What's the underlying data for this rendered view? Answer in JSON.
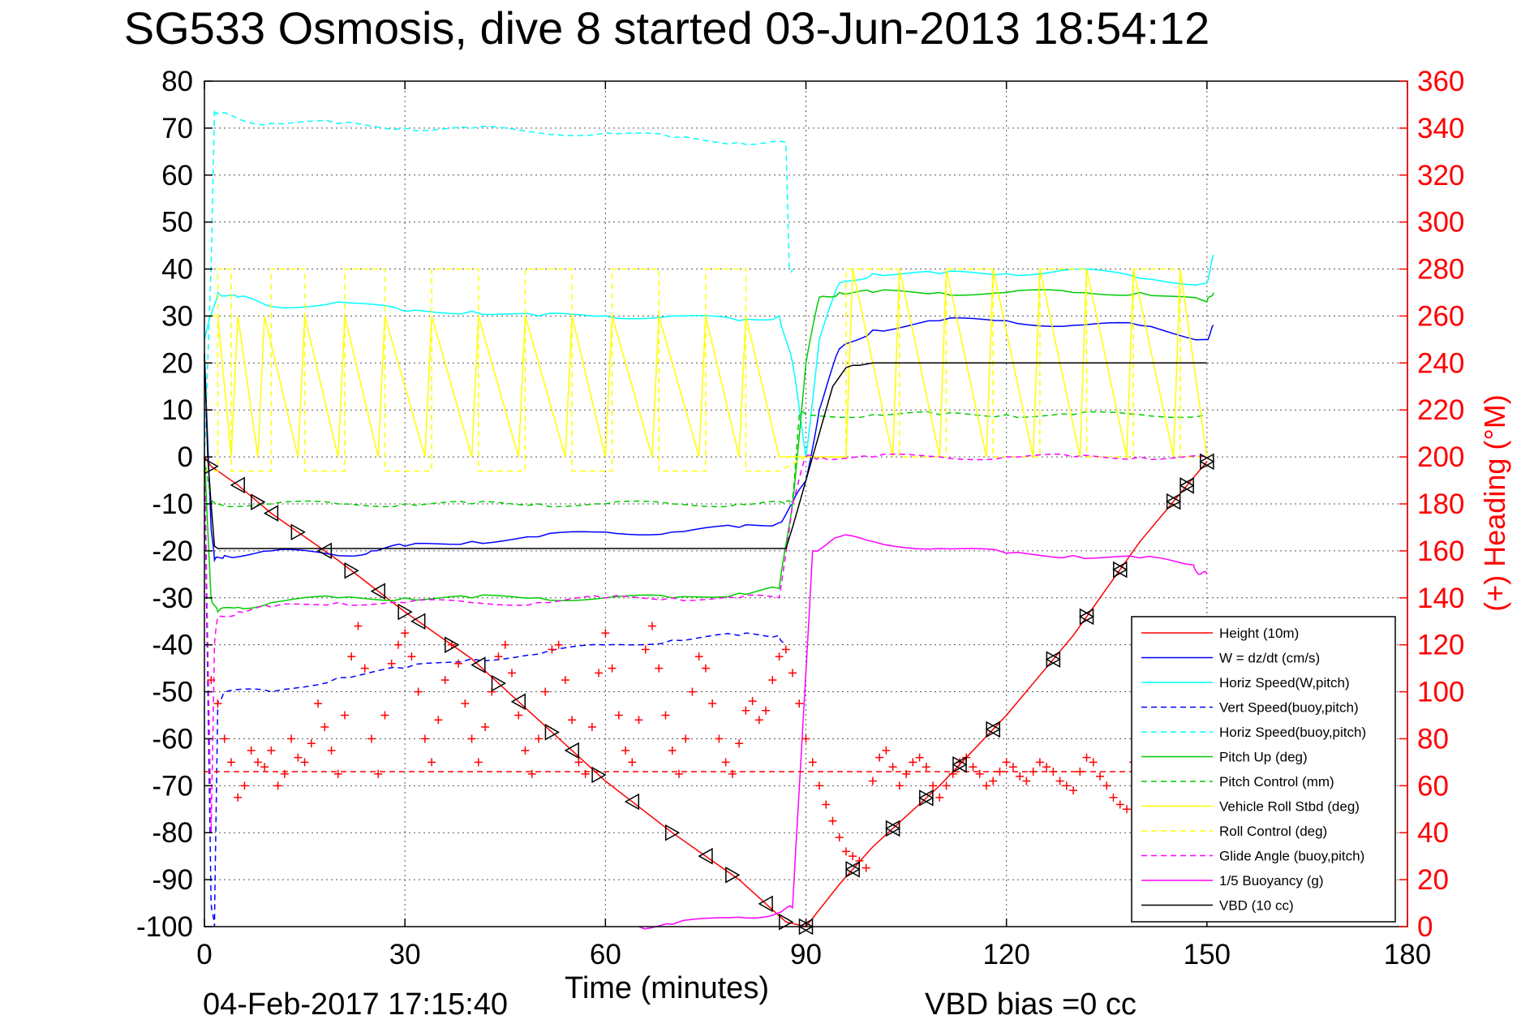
{
  "chart_data": {
    "type": "line",
    "title": "SG533 Osmosis, dive 8 started 03-Jun-2013 18:54:12",
    "xlabel": "Time (minutes)",
    "ylabel": "",
    "y2label": "(+) Heading (°M)",
    "xlim": [
      0,
      180
    ],
    "ylim": [
      -100,
      80
    ],
    "y2lim": [
      0,
      360
    ],
    "xticks": [
      "0",
      "30",
      "60",
      "90",
      "120",
      "150",
      "180"
    ],
    "yticks": [
      "80",
      "70",
      "60",
      "50",
      "40",
      "30",
      "20",
      "10",
      "0",
      "-10",
      "-20",
      "-30",
      "-40",
      "-50",
      "-60",
      "-70",
      "-80",
      "-90",
      "-100"
    ],
    "y2ticks": [
      "360",
      "340",
      "320",
      "300",
      "280",
      "260",
      "240",
      "220",
      "200",
      "180",
      "160",
      "140",
      "120",
      "100",
      "80",
      "60",
      "40",
      "20",
      "0"
    ],
    "grid": true,
    "legend_position": "bottom-right",
    "footer_left": "04-Feb-2017 17:15:40",
    "footer_right": "VBD bias =0 cc",
    "colors": {
      "red": "#ff0000",
      "blue": "#0000ff",
      "cyan": "#00ffff",
      "green": "#00cc00",
      "yellow": "#ffff00",
      "magenta": "#ff00ff",
      "black": "#000000"
    },
    "series": [
      {
        "name": "Height (10m)",
        "color": "#ff0000",
        "style": "solid",
        "x": [
          0,
          1,
          5,
          10,
          20,
          30,
          40,
          50,
          60,
          70,
          80,
          87,
          90,
          95,
          100,
          110,
          120,
          130,
          140,
          150
        ],
        "y": [
          0,
          -2,
          -6,
          -12,
          -22,
          -33,
          -43,
          -56,
          -69,
          -80,
          -90,
          -99,
          -100,
          -91,
          -83,
          -70,
          -55,
          -38,
          -18,
          -1
        ]
      },
      {
        "name": "W = dz/dt (cm/s)",
        "color": "#0000ff",
        "style": "solid",
        "x": [
          0,
          1,
          1.5,
          3,
          10,
          20,
          25,
          30,
          40,
          50,
          60,
          70,
          80,
          86,
          88,
          90,
          92,
          95,
          100,
          110,
          120,
          130,
          140,
          150,
          151
        ],
        "y": [
          22,
          -15,
          -22,
          -21,
          -20,
          -21,
          -20,
          -19,
          -18,
          -17,
          -16,
          -16,
          -15,
          -14,
          -10,
          -5,
          10,
          23,
          27,
          29,
          29,
          28,
          28,
          25,
          28
        ]
      },
      {
        "name": "Horiz Speed(W,pitch)",
        "color": "#00ffff",
        "style": "solid",
        "x": [
          0,
          1,
          2,
          5,
          10,
          20,
          30,
          40,
          50,
          60,
          70,
          80,
          86,
          88,
          90,
          92,
          95,
          100,
          110,
          120,
          130,
          140,
          150,
          151
        ],
        "y": [
          25,
          30,
          35,
          34,
          32,
          33,
          31,
          31,
          30,
          30,
          30,
          29,
          30,
          20,
          0,
          25,
          37,
          39,
          39,
          39,
          40,
          38,
          37,
          43
        ]
      },
      {
        "name": "Vert Speed(buoy,pitch)",
        "color": "#0000ff",
        "style": "dashed",
        "x": [
          0,
          1,
          1.5,
          2,
          3,
          10,
          20,
          30,
          40,
          50,
          60,
          70,
          80,
          86,
          87
        ],
        "y": [
          0,
          -95,
          -100,
          -52,
          -50,
          -50,
          -47,
          -45,
          -43,
          -42,
          -40,
          -39,
          -38,
          -38,
          -40
        ]
      },
      {
        "name": "Horiz Speed(buoy,pitch)",
        "color": "#00ffff",
        "style": "dashed",
        "x": [
          0,
          1,
          1.5,
          2,
          5,
          10,
          20,
          30,
          40,
          50,
          60,
          70,
          80,
          87,
          87.5,
          88
        ],
        "y": [
          0,
          40,
          74,
          73,
          72,
          71,
          71,
          70,
          70,
          69,
          69,
          68,
          67,
          67,
          40,
          40
        ]
      },
      {
        "name": "Pitch Up (deg)",
        "color": "#00cc00",
        "style": "solid",
        "x": [
          0,
          1,
          2,
          5,
          10,
          20,
          30,
          40,
          50,
          60,
          70,
          80,
          86,
          88,
          90,
          92,
          95,
          100,
          110,
          120,
          130,
          140,
          150,
          151
        ],
        "y": [
          0,
          -30,
          -33,
          -32,
          -31,
          -30,
          -30,
          -30,
          -30,
          -30,
          -30,
          -29,
          -28,
          -10,
          20,
          34,
          35,
          35,
          35,
          35,
          35,
          35,
          33,
          35
        ]
      },
      {
        "name": "Pitch Control (mm)",
        "color": "#00cc00",
        "style": "dashed",
        "x": [
          0,
          1,
          2,
          10,
          20,
          30,
          40,
          50,
          60,
          70,
          80,
          87,
          88,
          89,
          90,
          100,
          110,
          120,
          130,
          140,
          150
        ],
        "y": [
          0,
          -10,
          -10,
          -10,
          -10,
          -10,
          -10,
          -10,
          -10,
          -10,
          -10,
          -10,
          -9,
          9,
          9,
          9,
          9,
          9,
          9,
          9,
          9
        ]
      },
      {
        "name": "Vehicle Roll Stbd (deg)",
        "color": "#ffff00",
        "style": "solid",
        "x": [
          0,
          2,
          4,
          5,
          8,
          9,
          14,
          15,
          20,
          21,
          26,
          27,
          33,
          34,
          40,
          41,
          47,
          48,
          54,
          55,
          60,
          61,
          67,
          68,
          74,
          75,
          80,
          81,
          86,
          88,
          90,
          96,
          97,
          103,
          104,
          110,
          111,
          117,
          118,
          124,
          125,
          131,
          132,
          138,
          139,
          145,
          146,
          150
        ],
        "y": [
          30,
          30,
          0,
          30,
          0,
          30,
          0,
          30,
          0,
          30,
          0,
          30,
          0,
          30,
          0,
          30,
          0,
          30,
          0,
          30,
          0,
          30,
          0,
          30,
          0,
          30,
          0,
          30,
          0,
          0,
          0,
          0,
          40,
          0,
          40,
          0,
          40,
          0,
          40,
          0,
          40,
          0,
          40,
          0,
          40,
          0,
          40,
          0
        ]
      },
      {
        "name": "Roll Control (deg)",
        "color": "#ffff00",
        "style": "dashed",
        "x": [
          0,
          2,
          2,
          4,
          4,
          10,
          10,
          15,
          15,
          21,
          21,
          27,
          27,
          34,
          34,
          41,
          41,
          48,
          48,
          55,
          55,
          61,
          61,
          68,
          68,
          75,
          75,
          81,
          81,
          86,
          90,
          96,
          96,
          104,
          104,
          111,
          111,
          118,
          118,
          125,
          125,
          132,
          132,
          139,
          139,
          146,
          146,
          150
        ],
        "y": [
          -3,
          -3,
          40,
          40,
          -3,
          -3,
          40,
          40,
          -3,
          -3,
          40,
          40,
          -3,
          -3,
          40,
          40,
          -3,
          -3,
          40,
          40,
          -3,
          -3,
          40,
          40,
          -3,
          -3,
          40,
          40,
          -3,
          -3,
          0,
          0,
          40,
          40,
          0,
          0,
          40,
          40,
          0,
          0,
          40,
          40,
          0,
          0,
          40,
          40,
          0,
          0
        ]
      },
      {
        "name": "Glide Angle (buoy,pitch)",
        "color": "#ff00ff",
        "style": "dashed",
        "x": [
          0,
          1,
          1.5,
          2,
          5,
          10,
          20,
          30,
          40,
          50,
          60,
          70,
          80,
          86,
          88,
          90,
          92,
          100,
          110,
          120,
          130,
          140,
          150
        ],
        "y": [
          0,
          -80,
          -40,
          -34,
          -33,
          -32,
          -31,
          -31,
          -31,
          -31,
          -30,
          -30,
          -30,
          -30,
          -10,
          0,
          0,
          0,
          0,
          0,
          0,
          0,
          0
        ]
      },
      {
        "name": "1/5 Buoyancy (g)",
        "color": "#ff00ff",
        "style": "solid",
        "x": [
          65,
          70,
          80,
          86,
          88,
          91,
          95,
          100,
          110,
          120,
          130,
          140,
          148,
          149,
          150
        ],
        "y": [
          -100,
          -99.5,
          -98,
          -97,
          -96,
          -20,
          -17,
          -18,
          -19.5,
          -20.5,
          -21,
          -21.5,
          -23,
          -25,
          -25
        ]
      },
      {
        "name": "VBD (10 cc)",
        "color": "#000000",
        "style": "solid",
        "x": [
          0,
          0.5,
          1,
          1.5,
          2,
          10,
          20,
          30,
          40,
          50,
          60,
          70,
          80,
          87,
          88,
          89,
          90,
          91,
          92,
          93,
          94,
          95,
          96,
          97,
          98,
          100,
          110,
          120,
          130,
          140,
          150
        ],
        "y": [
          22,
          0,
          -10,
          -19,
          -19.5,
          -19.5,
          -19.5,
          -19.5,
          -19.5,
          -19.5,
          -19.5,
          -19.5,
          -19.5,
          -19.5,
          -15,
          -10,
          -5,
          0,
          5,
          10,
          15,
          17,
          19,
          19.5,
          19.5,
          20,
          20,
          20,
          20,
          20,
          20
        ]
      }
    ],
    "heading": {
      "color": "#ff0000",
      "marker": "+",
      "mean_heading": 66,
      "x": [
        1,
        2,
        3,
        4,
        5,
        6,
        7,
        8,
        9,
        10,
        11,
        12,
        13,
        14,
        15,
        16,
        17,
        18,
        19,
        20,
        21,
        22,
        23,
        24,
        25,
        26,
        27,
        28,
        29,
        30,
        31,
        32,
        33,
        34,
        35,
        36,
        37,
        38,
        39,
        40,
        41,
        42,
        43,
        44,
        45,
        46,
        47,
        48,
        49,
        50,
        51,
        52,
        53,
        54,
        55,
        56,
        57,
        58,
        59,
        60,
        61,
        62,
        63,
        64,
        65,
        66,
        67,
        68,
        69,
        70,
        71,
        72,
        73,
        74,
        75,
        76,
        77,
        78,
        79,
        80,
        81,
        82,
        83,
        84,
        85,
        86,
        87,
        88,
        89,
        90,
        91,
        92,
        93,
        94,
        95,
        96,
        97,
        98,
        99,
        100,
        101,
        102,
        103,
        104,
        105,
        106,
        107,
        108,
        109,
        110,
        111,
        112,
        113,
        114,
        115,
        116,
        117,
        118,
        119,
        120,
        121,
        122,
        123,
        124,
        125,
        126,
        127,
        128,
        129,
        130,
        131,
        132,
        133,
        134,
        135,
        136,
        137,
        138,
        139
      ],
      "y": [
        105,
        95,
        80,
        70,
        55,
        60,
        75,
        70,
        68,
        75,
        60,
        65,
        80,
        72,
        70,
        78,
        95,
        85,
        75,
        65,
        90,
        115,
        128,
        110,
        80,
        65,
        90,
        112,
        120,
        125,
        115,
        100,
        80,
        70,
        88,
        105,
        120,
        112,
        95,
        80,
        70,
        85,
        100,
        115,
        120,
        108,
        90,
        75,
        65,
        80,
        100,
        118,
        120,
        105,
        88,
        70,
        65,
        85,
        108,
        125,
        110,
        90,
        75,
        70,
        88,
        118,
        128,
        110,
        90,
        75,
        65,
        80,
        100,
        115,
        110,
        95,
        80,
        70,
        65,
        78,
        92,
        96,
        88,
        92,
        105,
        115,
        118,
        108,
        95,
        80,
        70,
        60,
        52,
        45,
        38,
        32,
        30,
        28,
        25,
        62,
        72,
        75,
        68,
        60,
        65,
        70,
        72,
        68,
        60,
        55,
        60,
        65,
        70,
        72,
        68,
        65,
        60,
        62,
        66,
        70,
        68,
        64,
        62,
        66,
        70,
        68,
        66,
        62,
        60,
        58,
        66,
        72,
        70,
        64,
        60,
        55,
        52,
        50,
        70
      ]
    },
    "markers": {
      "descent_x": [
        1,
        5,
        8,
        10,
        14,
        18,
        22,
        26,
        30,
        32,
        37,
        41,
        44,
        47,
        52,
        55,
        59,
        64,
        70,
        75,
        79,
        84,
        87
      ],
      "ascent_x": [
        90,
        97,
        103,
        108,
        113,
        118,
        127,
        132,
        137,
        145,
        147,
        150
      ]
    }
  }
}
